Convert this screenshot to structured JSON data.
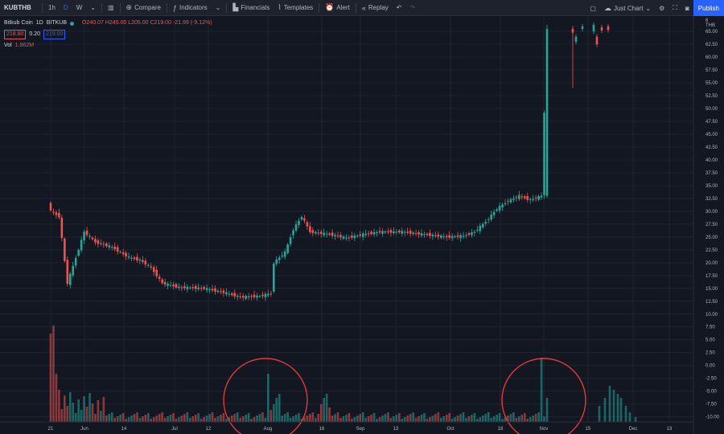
{
  "toolbar": {
    "symbol": "KUBTHB",
    "intervals": [
      "1h",
      "D",
      "W"
    ],
    "active_interval": "D",
    "compare_label": "Compare",
    "indicators_label": "Indicators",
    "financials_label": "Financials",
    "templates_label": "Templates",
    "alert_label": "Alert",
    "replay_label": "Replay",
    "layout_label": "Just Chart",
    "publish_label": "Publish"
  },
  "legend": {
    "name": "Bitkub Coin",
    "interval": "1D",
    "exchange": "BITKUB",
    "ohlc": "O240.07 H245.00 L205.00 C219.00 -21.99 (-9.12%)",
    "bid": "218.80",
    "spread": "0.20",
    "ask": "219.00",
    "vol_label": "Vol",
    "vol_value": "1.862M"
  },
  "axis": {
    "currency": "THB",
    "top_label": "6"
  },
  "chart_data": {
    "type": "candlestick",
    "ylim": [
      -11,
      68
    ],
    "y_ticks": [
      65,
      62.5,
      60,
      57.5,
      55,
      52.5,
      50,
      47.5,
      45,
      42.5,
      40,
      37.5,
      35,
      32.5,
      30,
      27.5,
      25,
      22.5,
      20,
      17.5,
      15,
      12.5,
      10,
      7.5,
      5,
      2.5,
      0,
      -2.5,
      -5,
      -7.5,
      -10
    ],
    "y_tick_labels": [
      "65.00",
      "62.50",
      "60.00",
      "57.50",
      "55.00",
      "52.50",
      "50.00",
      "47.50",
      "45.00",
      "42.50",
      "40.00",
      "37.50",
      "35.00",
      "32.50",
      "30.00",
      "27.50",
      "25.00",
      "22.50",
      "20.00",
      "17.50",
      "15.00",
      "12.50",
      "10.00",
      "7.50",
      "5.00",
      "2.50",
      "0.00",
      "-2.50",
      "-5.00",
      "-7.50",
      "-10.00"
    ],
    "x_tick_labels": [
      "21",
      "Jun",
      "14",
      "Jul",
      "12",
      "Aug",
      "16",
      "Sep",
      "13",
      "Oct",
      "18",
      "Nov",
      "15",
      "Dec",
      "13"
    ],
    "colors": {
      "up": "#26a69a",
      "down": "#ef5350",
      "circle": "#e53935",
      "grid": "#1f2330"
    }
  }
}
